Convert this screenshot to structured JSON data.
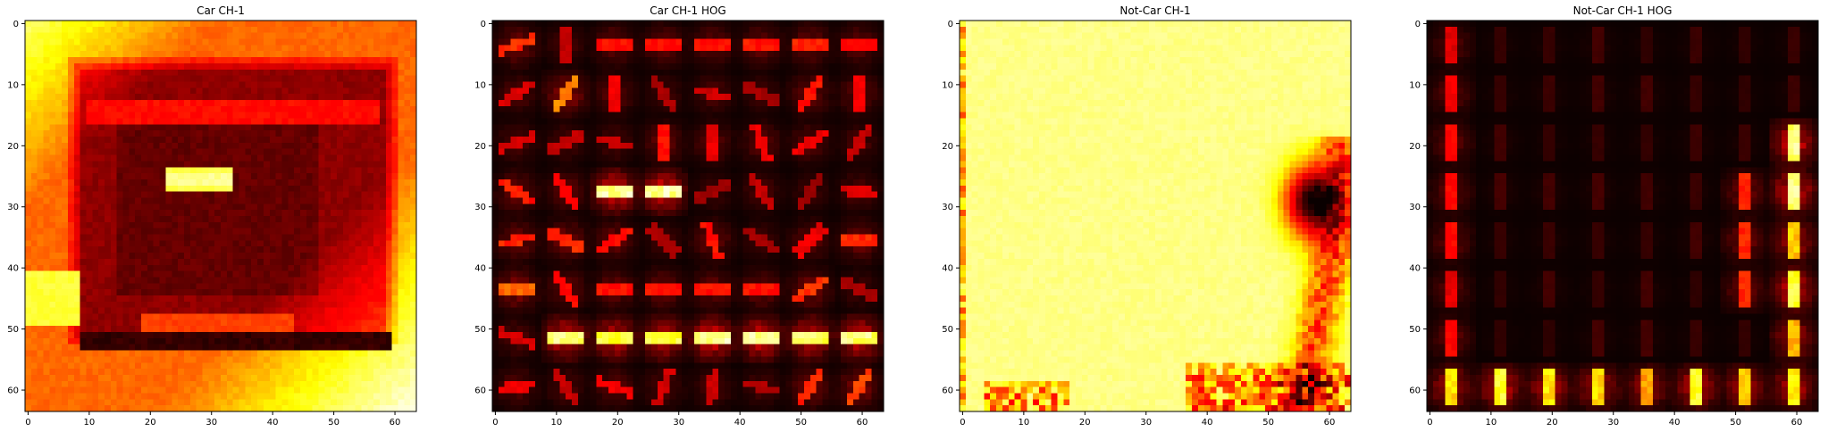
{
  "colormap": {
    "name": "hot",
    "stops": [
      "#0b0000",
      "#ff0000",
      "#ffff00",
      "#ffffff"
    ]
  },
  "chart_data": [
    {
      "type": "heatmap",
      "title": "Car CH-1",
      "content": "car",
      "xlim": [
        0,
        63
      ],
      "ylim": [
        0,
        63
      ],
      "xticks": [
        0,
        10,
        20,
        30,
        40,
        50,
        60
      ],
      "yticks": [
        0,
        10,
        20,
        30,
        40,
        50,
        60
      ],
      "grid": false
    },
    {
      "type": "heatmap",
      "title": "Car CH-1 HOG",
      "content": "car-hog",
      "xlim": [
        0,
        63
      ],
      "ylim": [
        0,
        63
      ],
      "xticks": [
        0,
        10,
        20,
        30,
        40,
        50,
        60
      ],
      "yticks": [
        0,
        10,
        20,
        30,
        40,
        50,
        60
      ],
      "grid": false
    },
    {
      "type": "heatmap",
      "title": "Not-Car CH-1",
      "content": "notcar",
      "xlim": [
        0,
        63
      ],
      "ylim": [
        0,
        63
      ],
      "xticks": [
        0,
        10,
        20,
        30,
        40,
        50,
        60
      ],
      "yticks": [
        0,
        10,
        20,
        30,
        40,
        50,
        60
      ],
      "grid": false
    },
    {
      "type": "heatmap",
      "title": "Not-Car CH-1 HOG",
      "content": "notcar-hog",
      "xlim": [
        0,
        63
      ],
      "ylim": [
        0,
        63
      ],
      "xticks": [
        0,
        10,
        20,
        30,
        40,
        50,
        60
      ],
      "yticks": [
        0,
        10,
        20,
        30,
        40,
        50,
        60
      ],
      "grid": false
    }
  ]
}
